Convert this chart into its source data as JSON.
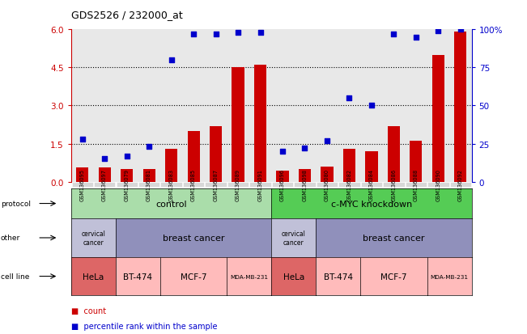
{
  "title": "GDS2526 / 232000_at",
  "samples": [
    "GSM136095",
    "GSM136097",
    "GSM136079",
    "GSM136081",
    "GSM136083",
    "GSM136085",
    "GSM136087",
    "GSM136089",
    "GSM136091",
    "GSM136096",
    "GSM136098",
    "GSM136080",
    "GSM136082",
    "GSM136084",
    "GSM136086",
    "GSM136088",
    "GSM136090",
    "GSM136092"
  ],
  "bar_values": [
    0.55,
    0.55,
    0.5,
    0.5,
    1.3,
    2.0,
    2.2,
    4.5,
    4.6,
    0.45,
    0.5,
    0.6,
    1.3,
    1.2,
    2.2,
    1.6,
    5.0,
    5.9
  ],
  "dot_values": [
    28,
    15,
    17,
    23,
    80,
    97,
    97,
    98,
    98,
    20,
    22,
    27,
    55,
    50,
    97,
    95,
    99,
    100
  ],
  "bar_color": "#cc0000",
  "dot_color": "#0000cc",
  "ylim_left": [
    0,
    6
  ],
  "ylim_right": [
    0,
    100
  ],
  "yticks_left": [
    0,
    1.5,
    3.0,
    4.5,
    6.0
  ],
  "yticks_right": [
    0,
    25,
    50,
    75,
    100
  ],
  "protocol_color_control": "#aaddaa",
  "protocol_color_cmyc": "#55cc55",
  "other_color_cervical": "#c0c0d8",
  "other_color_breast": "#9090bb",
  "cell_line_hela_color": "#dd6666",
  "cell_line_other_color": "#ffbbbb",
  "legend_bar_label": "count",
  "legend_dot_label": "percentile rank within the sample",
  "row_labels": [
    "protocol",
    "other",
    "cell line"
  ],
  "bar_width": 0.55,
  "cell_line_groups": [
    {
      "label": "HeLa",
      "span": [
        0,
        1
      ],
      "is_hela": true
    },
    {
      "label": "BT-474",
      "span": [
        2,
        3
      ],
      "is_hela": false
    },
    {
      "label": "MCF-7",
      "span": [
        4,
        6
      ],
      "is_hela": false
    },
    {
      "label": "MDA-MB-231",
      "span": [
        7,
        8
      ],
      "is_hela": false
    },
    {
      "label": "HeLa",
      "span": [
        9,
        10
      ],
      "is_hela": true
    },
    {
      "label": "BT-474",
      "span": [
        11,
        12
      ],
      "is_hela": false
    },
    {
      "label": "MCF-7",
      "span": [
        13,
        15
      ],
      "is_hela": false
    },
    {
      "label": "MDA-MB-231",
      "span": [
        16,
        17
      ],
      "is_hela": false
    }
  ]
}
